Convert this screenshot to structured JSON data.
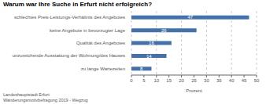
{
  "chart_data": {
    "type": "bar",
    "title": "Warum war Ihre Suche in Erfurt nicht erfolgreich?",
    "categories": [
      "schlechtes Preis-Leistungs-Verhältnis des Angebotes",
      "keine Angebote in bevorzugter Lage",
      "Qualität des Angebotes",
      "unzureichende Ausstattung der Wohnung/des Hauses",
      "zu lange Wartezeiten"
    ],
    "values": [
      47,
      26,
      16,
      14,
      8
    ],
    "color": "#4472a8",
    "orientation": "horizontal",
    "xlabel": "Prozent",
    "xlim": [
      0,
      50
    ],
    "xticks": [
      0,
      5,
      10,
      15,
      20,
      25,
      30,
      35,
      40,
      45,
      50
    ],
    "grid": true,
    "data_labels": true,
    "footnote": "Landeshauptstadt Erfurt\nWanderungsmotivbefragung 2019 - Wegzug"
  }
}
